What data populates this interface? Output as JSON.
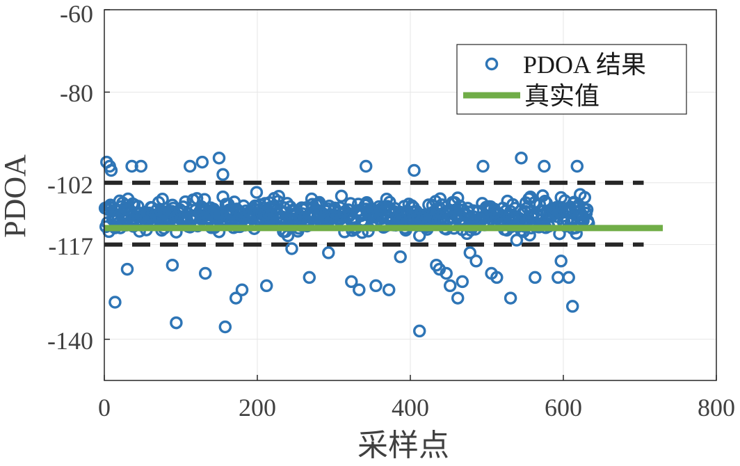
{
  "chart_data": {
    "type": "scatter",
    "xlabel": "采样点",
    "ylabel": "PDOA",
    "xlim": [
      0,
      800
    ],
    "ylim": [
      -150,
      -60
    ],
    "x_ticks": [
      "0",
      "200",
      "400",
      "600",
      "800"
    ],
    "y_ticks": [
      "-60",
      "-80",
      "-102",
      "-117",
      "-140"
    ],
    "y_tick_values": [
      -60,
      -80,
      -102,
      -117,
      -140
    ],
    "grid": true,
    "legend": {
      "position": "top-right",
      "entries": [
        "PDOA 结果",
        "真实值"
      ]
    },
    "series": [
      {
        "name": "PDOA 结果",
        "kind": "scatter",
        "color": "#2e75b6",
        "count": 633,
        "mean": -110,
        "noise_sd": 3.6,
        "outliers": [
          [
            3,
            -97
          ],
          [
            7,
            -98
          ],
          [
            9,
            -99
          ],
          [
            14,
            -131
          ],
          [
            30,
            -123
          ],
          [
            36,
            -98
          ],
          [
            48,
            -98
          ],
          [
            89,
            -122
          ],
          [
            94,
            -136
          ],
          [
            112,
            -98
          ],
          [
            128,
            -97
          ],
          [
            132,
            -124
          ],
          [
            150,
            -96
          ],
          [
            155,
            -100
          ],
          [
            158,
            -137
          ],
          [
            172,
            -130
          ],
          [
            180,
            -128
          ],
          [
            212,
            -127
          ],
          [
            245,
            -118
          ],
          [
            268,
            -125
          ],
          [
            293,
            -119
          ],
          [
            323,
            -126
          ],
          [
            333,
            -128
          ],
          [
            342,
            -98
          ],
          [
            355,
            -127
          ],
          [
            372,
            -128
          ],
          [
            387,
            -120
          ],
          [
            405,
            -99
          ],
          [
            412,
            -138
          ],
          [
            434,
            -122
          ],
          [
            438,
            -123
          ],
          [
            447,
            -124
          ],
          [
            452,
            -127
          ],
          [
            462,
            -130
          ],
          [
            468,
            -126
          ],
          [
            478,
            -119
          ],
          [
            486,
            -121
          ],
          [
            495,
            -98
          ],
          [
            506,
            -124
          ],
          [
            513,
            -125
          ],
          [
            531,
            -130
          ],
          [
            545,
            -96
          ],
          [
            563,
            -125
          ],
          [
            575,
            -98
          ],
          [
            593,
            -125
          ],
          [
            597,
            -121
          ],
          [
            607,
            -125
          ],
          [
            612,
            -132
          ],
          [
            618,
            -98
          ]
        ]
      },
      {
        "name": "真实值",
        "kind": "line",
        "color": "#70ad47",
        "y": -113,
        "x": [
          0,
          730
        ]
      },
      {
        "kind": "dashed",
        "color": "#262626",
        "y": -102,
        "x": [
          0,
          705
        ]
      },
      {
        "kind": "dashed",
        "color": "#262626",
        "y": -117,
        "x": [
          0,
          705
        ]
      }
    ]
  }
}
